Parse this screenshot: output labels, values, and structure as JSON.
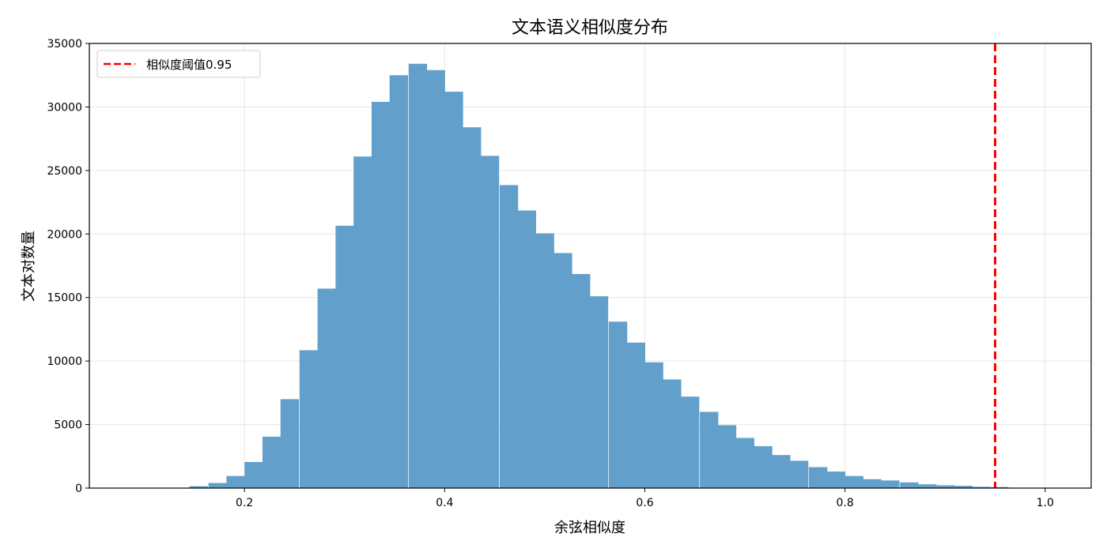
{
  "chart_data": {
    "type": "bar",
    "subtype": "histogram",
    "title": "文本语义相似度分布",
    "xlabel": "余弦相似度",
    "ylabel": "文本对数量",
    "xlim": [
      0.045,
      1.046
    ],
    "ylim": [
      0,
      35000
    ],
    "xticks": [
      "0.2",
      "0.4",
      "0.6",
      "0.8",
      "1.0"
    ],
    "yticks": [
      "0",
      "5000",
      "10000",
      "15000",
      "20000",
      "25000",
      "30000",
      "35000"
    ],
    "grid": true,
    "legend_placement": "top-left",
    "bin_width": 0.01818,
    "bin_starts": [
      0.109,
      0.127,
      0.145,
      0.164,
      0.182,
      0.2,
      0.218,
      0.236,
      0.255,
      0.273,
      0.291,
      0.309,
      0.327,
      0.345,
      0.364,
      0.382,
      0.4,
      0.418,
      0.436,
      0.455,
      0.473,
      0.491,
      0.509,
      0.527,
      0.545,
      0.564,
      0.582,
      0.6,
      0.618,
      0.636,
      0.655,
      0.673,
      0.691,
      0.709,
      0.727,
      0.745,
      0.764,
      0.782,
      0.8,
      0.818,
      0.836,
      0.855,
      0.873,
      0.891,
      0.909,
      0.927,
      0.945
    ],
    "values": [
      10,
      30,
      150,
      400,
      950,
      2050,
      4050,
      7000,
      10850,
      15700,
      20650,
      26100,
      30400,
      32500,
      33400,
      32900,
      31200,
      28400,
      26150,
      23850,
      21850,
      20050,
      18500,
      16850,
      15100,
      13100,
      11450,
      9900,
      8550,
      7200,
      6000,
      4950,
      3950,
      3300,
      2600,
      2150,
      1650,
      1300,
      950,
      700,
      600,
      450,
      300,
      220,
      180,
      100,
      80
    ],
    "bar_color": "#62a0cb",
    "threshold": {
      "x": 0.95,
      "label": "相似度阈值0.95",
      "color": "#ff0000",
      "style": "dashed"
    }
  }
}
